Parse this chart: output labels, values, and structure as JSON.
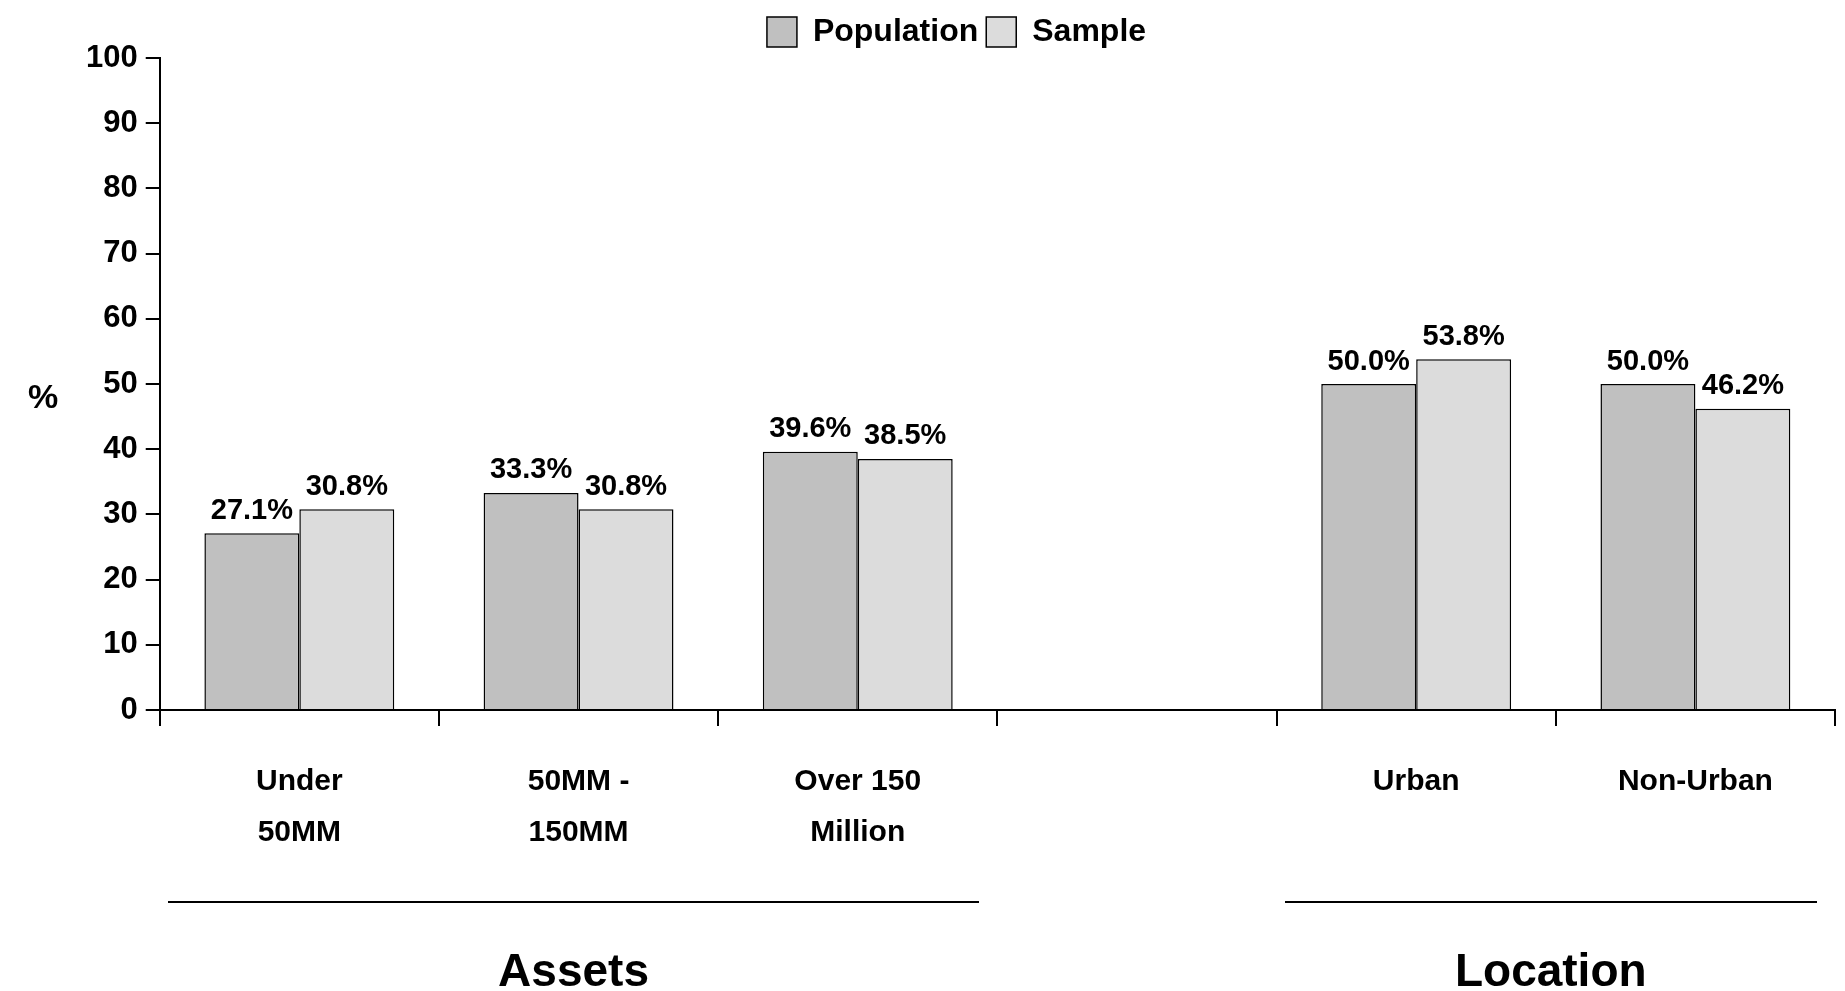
{
  "chart_data": {
    "type": "bar",
    "categories": [
      "Under 50MM",
      "50MM - 150MM",
      "Over 150 Million",
      null,
      "Urban",
      "Non-Urban"
    ],
    "series": [
      {
        "name": "Population",
        "color": "#c0c0c0",
        "values": [
          27.1,
          33.3,
          39.6,
          null,
          50.0,
          50.0
        ],
        "value_labels": [
          "27.1%",
          "33.3%",
          "39.6%",
          null,
          "50.0%",
          "50.0%"
        ]
      },
      {
        "name": "Sample",
        "color": "#dcdcdc",
        "values": [
          30.8,
          30.8,
          38.5,
          null,
          53.8,
          46.2
        ],
        "value_labels": [
          "30.8%",
          "30.8%",
          "38.5%",
          null,
          "53.8%",
          "46.2%"
        ]
      }
    ],
    "ylabel": "%",
    "ylim": [
      0,
      100
    ],
    "yticks": [
      0,
      10,
      20,
      30,
      40,
      50,
      60,
      70,
      80,
      90,
      100
    ],
    "grid": false,
    "legend": "top",
    "annotations": [
      "Assets",
      "Location"
    ]
  }
}
